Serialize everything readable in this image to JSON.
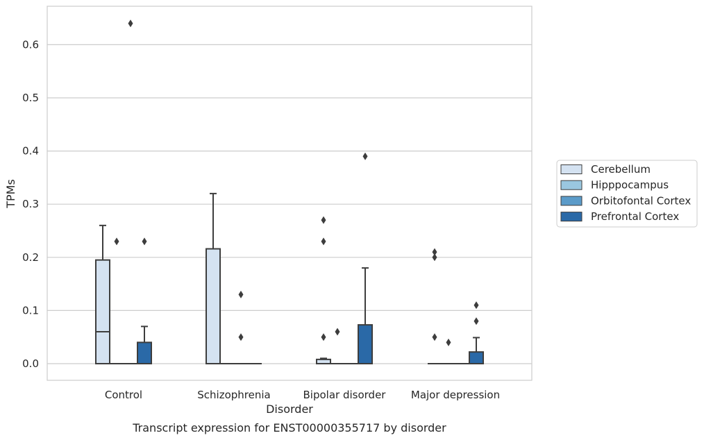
{
  "chart_data": {
    "type": "box",
    "caption": "Transcript expression for ENST00000355717 by disorder",
    "xlabel": "Disorder",
    "ylabel": "TPMs",
    "ylim": [
      -0.032,
      0.672
    ],
    "yticks": [
      "0.0",
      "0.1",
      "0.2",
      "0.3",
      "0.4",
      "0.5",
      "0.6"
    ],
    "ytick_values": [
      0.0,
      0.1,
      0.2,
      0.3,
      0.4,
      0.5,
      0.6
    ],
    "grid": true,
    "legend_position": "right",
    "categories": [
      "Control",
      "Schizophrenia",
      "Bipolar disorder",
      "Major depression"
    ],
    "series": [
      {
        "name": "Cerebellum",
        "color": "#d4e2f1",
        "boxes": [
          {
            "q1": 0.0,
            "median": 0.06,
            "q3": 0.195,
            "whisker_low": 0.0,
            "whisker_high": 0.26,
            "outliers": []
          },
          {
            "q1": 0.0,
            "median": 0.0,
            "q3": 0.216,
            "whisker_low": 0.0,
            "whisker_high": 0.32,
            "outliers": []
          },
          {
            "q1": 0.0,
            "median": 0.0,
            "q3": 0.008,
            "whisker_low": 0.0,
            "whisker_high": 0.01,
            "outliers": [
              0.05,
              0.23,
              0.27
            ]
          },
          {
            "q1": 0.0,
            "median": 0.0,
            "q3": 0.0,
            "whisker_low": 0.0,
            "whisker_high": 0.0,
            "outliers": [
              0.05,
              0.2,
              0.21
            ]
          }
        ]
      },
      {
        "name": "Hipppocampus",
        "color": "#9ac7e0",
        "boxes": [
          {
            "q1": 0.0,
            "median": 0.0,
            "q3": 0.0,
            "whisker_low": 0.0,
            "whisker_high": 0.0,
            "outliers": [
              0.23
            ]
          },
          {
            "q1": 0.0,
            "median": 0.0,
            "q3": 0.0,
            "whisker_low": 0.0,
            "whisker_high": 0.0,
            "outliers": []
          },
          {
            "q1": 0.0,
            "median": 0.0,
            "q3": 0.0,
            "whisker_low": 0.0,
            "whisker_high": 0.0,
            "outliers": [
              0.06
            ]
          },
          {
            "q1": 0.0,
            "median": 0.0,
            "q3": 0.0,
            "whisker_low": 0.0,
            "whisker_high": 0.0,
            "outliers": [
              0.04
            ]
          }
        ]
      },
      {
        "name": "Orbitofontal Cortex",
        "color": "#5b9bc9",
        "boxes": [
          {
            "q1": 0.0,
            "median": 0.0,
            "q3": 0.0,
            "whisker_low": 0.0,
            "whisker_high": 0.0,
            "outliers": [
              0.64
            ]
          },
          {
            "q1": 0.0,
            "median": 0.0,
            "q3": 0.0,
            "whisker_low": 0.0,
            "whisker_high": 0.0,
            "outliers": [
              0.05,
              0.13
            ]
          },
          {
            "q1": 0.0,
            "median": 0.0,
            "q3": 0.0,
            "whisker_low": 0.0,
            "whisker_high": 0.0,
            "outliers": []
          },
          {
            "q1": 0.0,
            "median": 0.0,
            "q3": 0.0,
            "whisker_low": 0.0,
            "whisker_high": 0.0,
            "outliers": []
          }
        ]
      },
      {
        "name": "Prefrontal Cortex",
        "color": "#2a69a7",
        "boxes": [
          {
            "q1": 0.0,
            "median": 0.0,
            "q3": 0.04,
            "whisker_low": 0.0,
            "whisker_high": 0.07,
            "outliers": [
              0.23
            ]
          },
          {
            "q1": 0.0,
            "median": 0.0,
            "q3": 0.0,
            "whisker_low": 0.0,
            "whisker_high": 0.0,
            "outliers": []
          },
          {
            "q1": 0.0,
            "median": 0.0,
            "q3": 0.073,
            "whisker_low": 0.0,
            "whisker_high": 0.18,
            "outliers": [
              0.39
            ]
          },
          {
            "q1": 0.0,
            "median": 0.0,
            "q3": 0.022,
            "whisker_low": 0.0,
            "whisker_high": 0.049,
            "outliers": [
              0.08,
              0.11
            ]
          }
        ]
      }
    ]
  }
}
